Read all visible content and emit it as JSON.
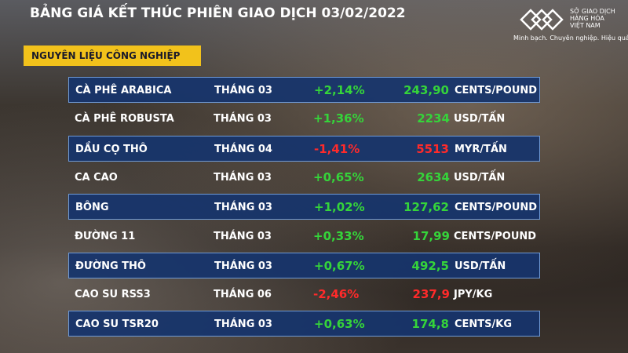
{
  "header": {
    "title": "BẢNG GIÁ KẾT THÚC PHIÊN GIAO DỊCH 03/02/2022"
  },
  "logo": {
    "lines": [
      "SỞ GIAO DỊCH",
      "HÀNG HÓA",
      "VIỆT NAM"
    ],
    "tagline": "Minh bạch. Chuyên nghiệp. Hiệu quả"
  },
  "section": {
    "label": "NGUYÊN LIỆU CÔNG NGHIỆP"
  },
  "table": {
    "rows": [
      [
        "CÀ PHÊ ARABICA",
        "THÁNG 03",
        "+2,14%",
        "243,90",
        "CENTS/POUND"
      ],
      [
        "CÀ PHÊ ROBUSTA",
        "THÁNG 03",
        "+1,36%",
        "2234",
        "USD/TẤN"
      ],
      [
        "DẦU CỌ THÔ",
        "THÁNG 04",
        "-1,41%",
        "5513",
        "MYR/TẤN"
      ],
      [
        "CA CAO",
        "THÁNG 03",
        "+0,65%",
        "2634",
        "USD/TẤN"
      ],
      [
        "BÔNG",
        "THÁNG 03",
        "+1,02%",
        "127,62",
        "CENTS/POUND"
      ],
      [
        "ĐƯỜNG 11",
        "THÁNG 03",
        "+0,33%",
        "17,99",
        "CENTS/POUND"
      ],
      [
        "ĐƯỜNG THÔ",
        "THÁNG 03",
        "+0,67%",
        "492,5",
        "USD/TẤN"
      ],
      [
        "CAO SU RSS3",
        "THÁNG 06",
        "-2,46%",
        "237,9",
        "JPY/KG"
      ],
      [
        "CAO SU TSR20",
        "THÁNG 03",
        "+0,63%",
        "174,8",
        "CENTS/KG"
      ]
    ]
  }
}
